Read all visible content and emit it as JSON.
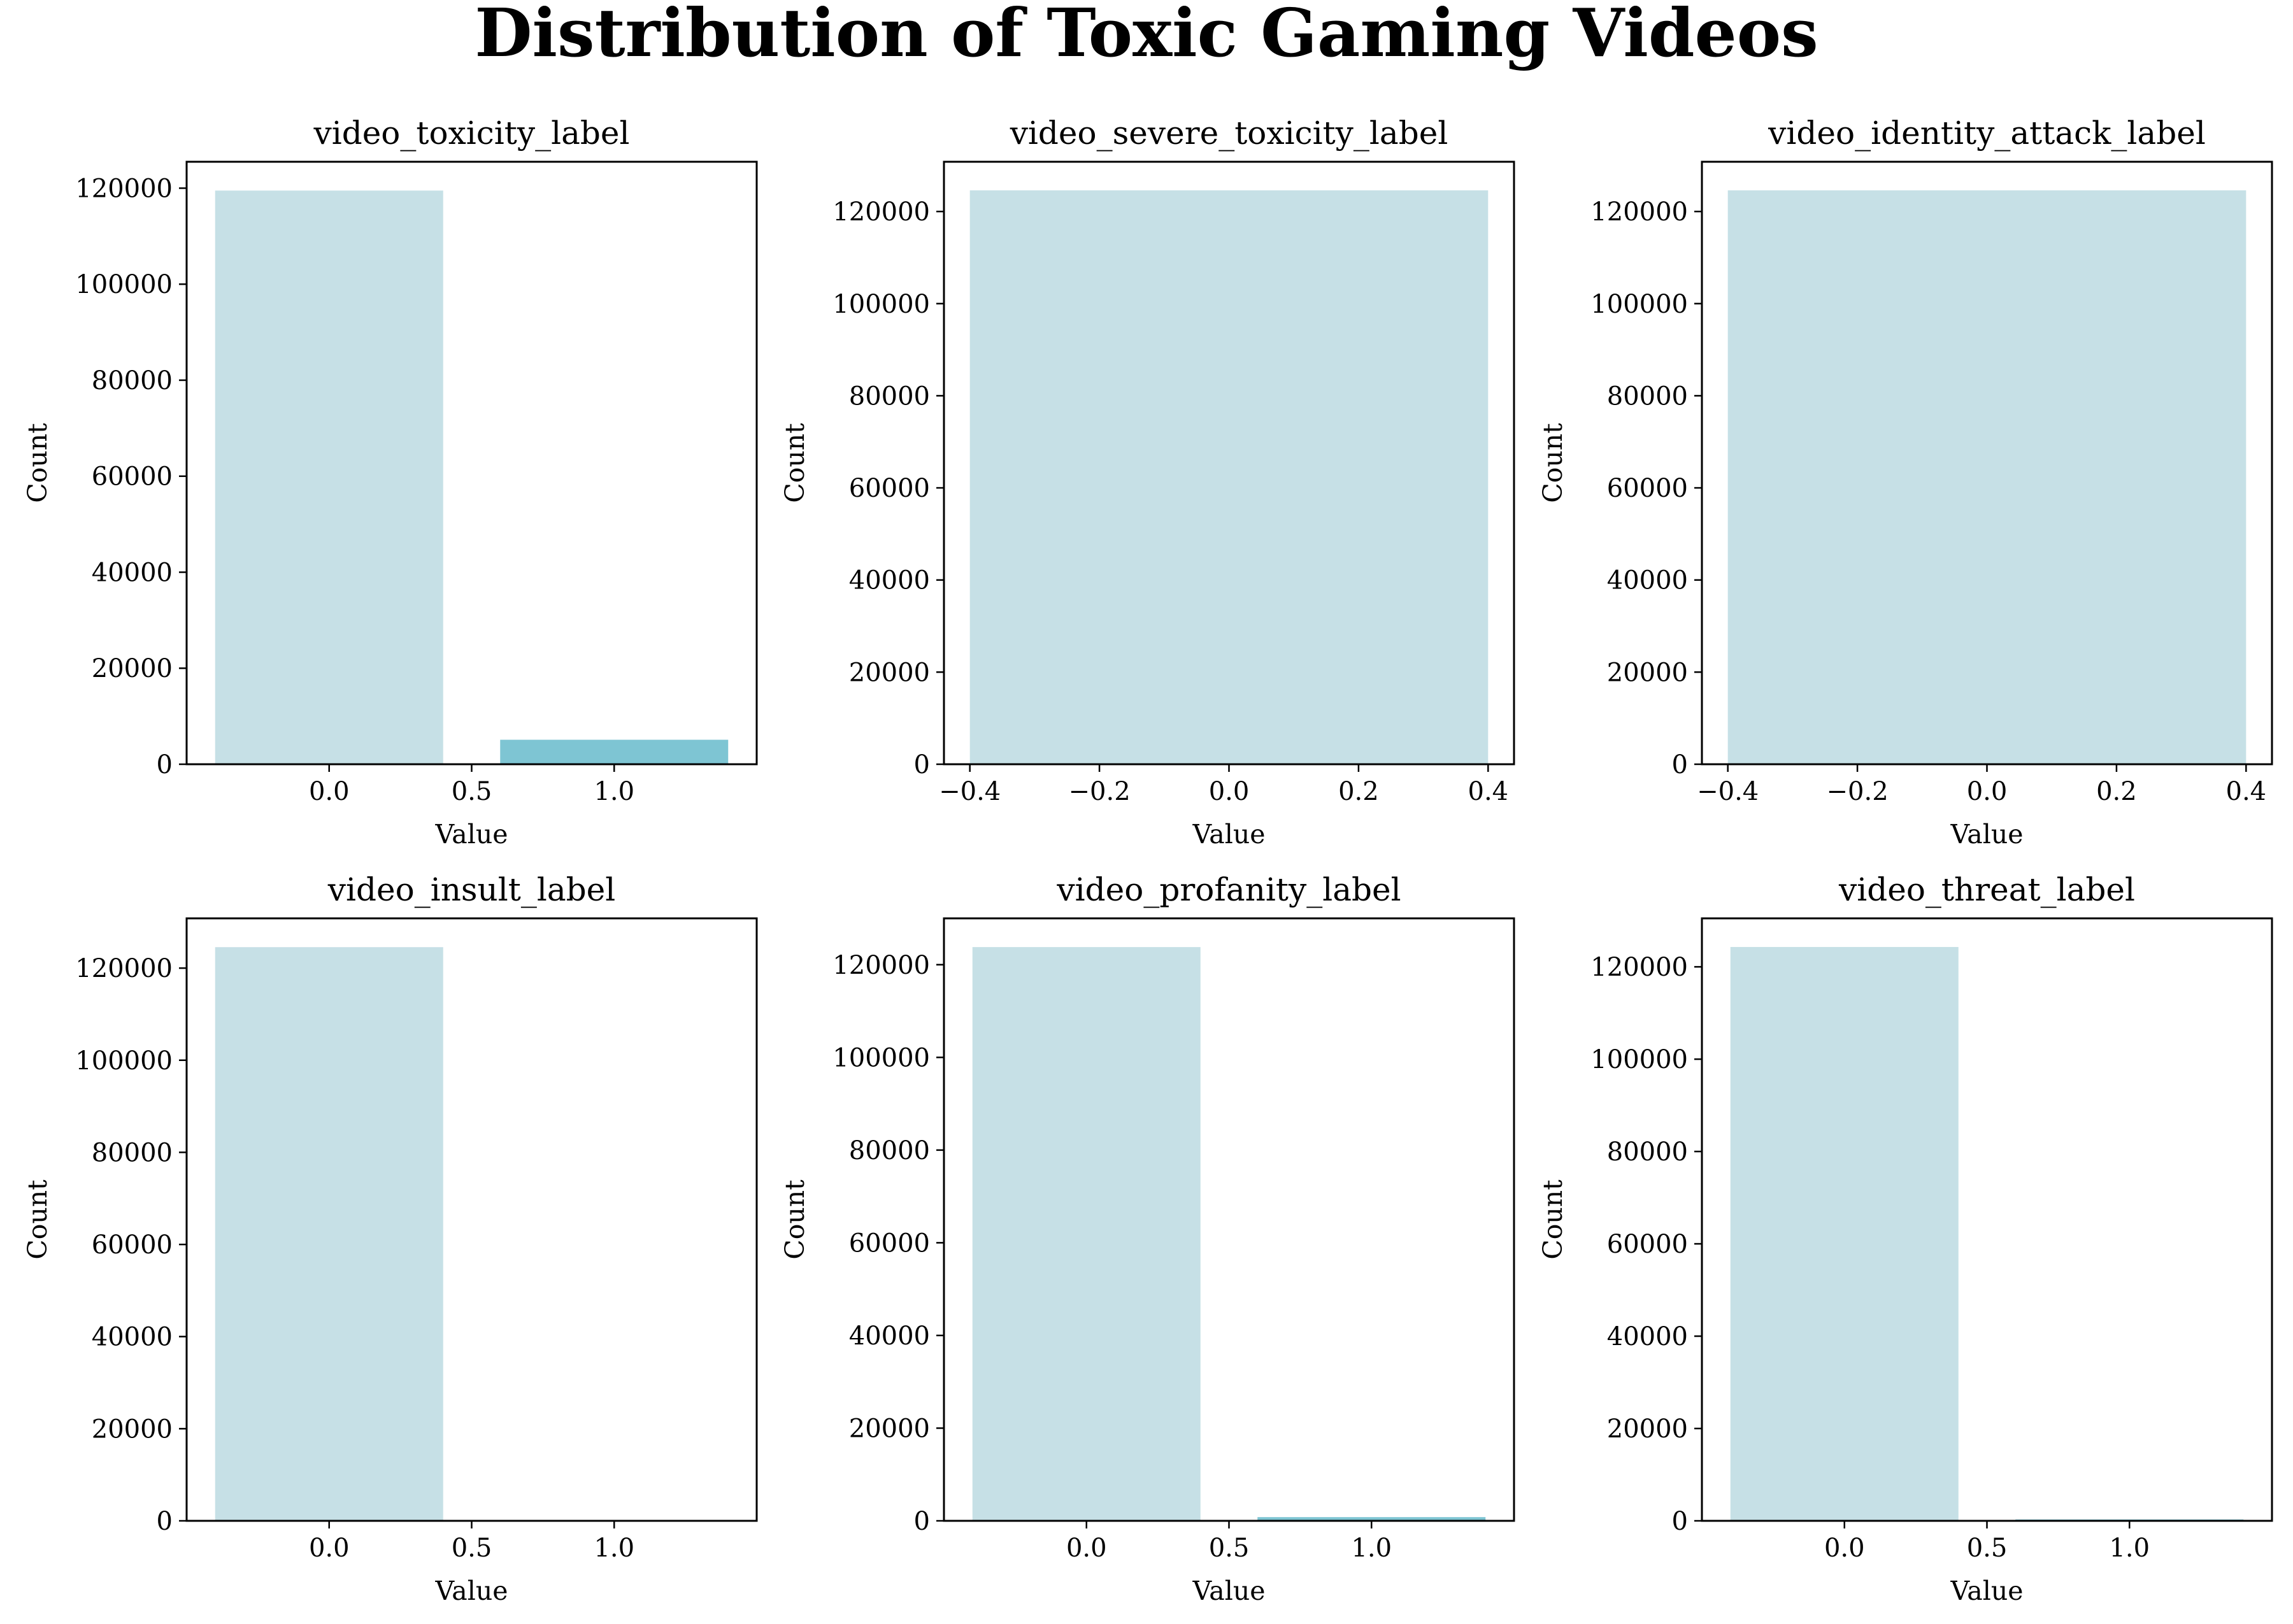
{
  "figure": {
    "title": "Distribution of Toxic Gaming Videos"
  },
  "colors": {
    "bar_primary": "#c6e0e6",
    "bar_secondary": "#7ec5d3",
    "axis": "#000000",
    "background": "#ffffff"
  },
  "chart_data": [
    {
      "type": "bar",
      "title": "video_toxicity_label",
      "xlabel": "Value",
      "ylabel": "Count",
      "bars": [
        {
          "x": 0.0,
          "value": 119500,
          "color": "#c6e0e6"
        },
        {
          "x": 1.0,
          "value": 5100,
          "color": "#7ec5d3"
        }
      ],
      "bar_width": 0.8,
      "xlim": [
        -0.5,
        1.5
      ],
      "ylim": [
        0,
        125500
      ],
      "xticks": [
        0.0,
        0.5,
        1.0
      ],
      "xtick_labels": [
        "0.0",
        "0.5",
        "1.0"
      ],
      "yticks": [
        0,
        20000,
        40000,
        60000,
        80000,
        100000,
        120000
      ],
      "ytick_labels": [
        "0",
        "20000",
        "40000",
        "60000",
        "80000",
        "100000",
        "120000"
      ],
      "grid": false
    },
    {
      "type": "bar",
      "title": "video_severe_toxicity_label",
      "xlabel": "Value",
      "ylabel": "Count",
      "bars": [
        {
          "x": 0.0,
          "value": 124600,
          "color": "#c6e0e6"
        }
      ],
      "bar_width": 0.8,
      "xlim": [
        -0.44,
        0.44
      ],
      "ylim": [
        0,
        130800
      ],
      "xticks": [
        -0.4,
        -0.2,
        0.0,
        0.2,
        0.4
      ],
      "xtick_labels": [
        "−0.4",
        "−0.2",
        "0.0",
        "0.2",
        "0.4"
      ],
      "yticks": [
        0,
        20000,
        40000,
        60000,
        80000,
        100000,
        120000
      ],
      "ytick_labels": [
        "0",
        "20000",
        "40000",
        "60000",
        "80000",
        "100000",
        "120000"
      ],
      "grid": false
    },
    {
      "type": "bar",
      "title": "video_identity_attack_label",
      "xlabel": "Value",
      "ylabel": "Count",
      "bars": [
        {
          "x": 0.0,
          "value": 124600,
          "color": "#c6e0e6"
        }
      ],
      "bar_width": 0.8,
      "xlim": [
        -0.44,
        0.44
      ],
      "ylim": [
        0,
        130800
      ],
      "xticks": [
        -0.4,
        -0.2,
        0.0,
        0.2,
        0.4
      ],
      "xtick_labels": [
        "−0.4",
        "−0.2",
        "0.0",
        "0.2",
        "0.4"
      ],
      "yticks": [
        0,
        20000,
        40000,
        60000,
        80000,
        100000,
        120000
      ],
      "ytick_labels": [
        "0",
        "20000",
        "40000",
        "60000",
        "80000",
        "100000",
        "120000"
      ],
      "grid": false
    },
    {
      "type": "bar",
      "title": "video_insult_label",
      "xlabel": "Value",
      "ylabel": "Count",
      "bars": [
        {
          "x": 0.0,
          "value": 124550,
          "color": "#c6e0e6"
        },
        {
          "x": 1.0,
          "value": 60,
          "color": "#7ec5d3"
        }
      ],
      "bar_width": 0.8,
      "xlim": [
        -0.5,
        1.5
      ],
      "ylim": [
        0,
        130800
      ],
      "xticks": [
        0.0,
        0.5,
        1.0
      ],
      "xtick_labels": [
        "0.0",
        "0.5",
        "1.0"
      ],
      "yticks": [
        0,
        20000,
        40000,
        60000,
        80000,
        100000,
        120000
      ],
      "ytick_labels": [
        "0",
        "20000",
        "40000",
        "60000",
        "80000",
        "100000",
        "120000"
      ],
      "grid": false
    },
    {
      "type": "bar",
      "title": "video_profanity_label",
      "xlabel": "Value",
      "ylabel": "Count",
      "bars": [
        {
          "x": 0.0,
          "value": 123800,
          "color": "#c6e0e6"
        },
        {
          "x": 1.0,
          "value": 800,
          "color": "#7ec5d3"
        }
      ],
      "bar_width": 0.8,
      "xlim": [
        -0.5,
        1.5
      ],
      "ylim": [
        0,
        130000
      ],
      "xticks": [
        0.0,
        0.5,
        1.0
      ],
      "xtick_labels": [
        "0.0",
        "0.5",
        "1.0"
      ],
      "yticks": [
        0,
        20000,
        40000,
        60000,
        80000,
        100000,
        120000
      ],
      "ytick_labels": [
        "0",
        "20000",
        "40000",
        "60000",
        "80000",
        "100000",
        "120000"
      ],
      "grid": false
    },
    {
      "type": "bar",
      "title": "video_threat_label",
      "xlabel": "Value",
      "ylabel": "Count",
      "bars": [
        {
          "x": 0.0,
          "value": 124300,
          "color": "#c6e0e6"
        },
        {
          "x": 1.0,
          "value": 300,
          "color": "#7ec5d3"
        }
      ],
      "bar_width": 0.8,
      "xlim": [
        -0.5,
        1.5
      ],
      "ylim": [
        0,
        130500
      ],
      "xticks": [
        0.0,
        0.5,
        1.0
      ],
      "xtick_labels": [
        "0.0",
        "0.5",
        "1.0"
      ],
      "yticks": [
        0,
        20000,
        40000,
        60000,
        80000,
        100000,
        120000
      ],
      "ytick_labels": [
        "0",
        "20000",
        "40000",
        "60000",
        "80000",
        "100000",
        "120000"
      ],
      "grid": false
    }
  ]
}
